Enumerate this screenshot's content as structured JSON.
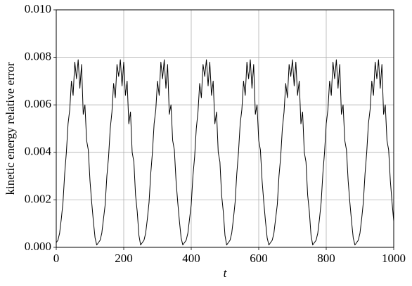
{
  "chart_data": {
    "type": "line",
    "xlabel": "t",
    "ylabel": "kinetic energy relative error",
    "xlim": [
      0,
      1000
    ],
    "ylim": [
      0,
      0.01
    ],
    "xticks": [
      0,
      200,
      400,
      600,
      800,
      1000
    ],
    "yticks": [
      {
        "value": 0,
        "label": "0.000"
      },
      {
        "value": 0.002,
        "label": "0.002"
      },
      {
        "value": 0.004,
        "label": "0.004"
      },
      {
        "value": 0.006,
        "label": "0.006"
      },
      {
        "value": 0.008,
        "label": "0.008"
      },
      {
        "value": 0.01,
        "label": "0.010"
      }
    ],
    "grid": true,
    "series": [
      {
        "color": "#000000",
        "x": [
          0,
          5,
          10,
          15,
          20,
          25,
          30,
          35,
          40,
          45,
          50,
          55,
          60,
          65,
          70,
          75,
          80,
          85,
          90,
          95,
          100,
          105,
          110,
          115,
          120,
          125,
          130,
          135,
          140,
          145,
          150,
          155,
          160,
          165,
          170,
          175,
          180,
          185,
          190,
          195,
          200,
          205,
          210,
          215,
          220,
          225,
          230,
          235,
          240,
          245,
          250,
          255,
          260,
          265,
          270,
          275,
          280,
          285,
          290,
          295,
          300,
          305,
          310,
          315,
          320,
          325,
          330,
          335,
          340,
          345,
          350,
          355,
          360,
          365,
          370,
          375,
          380,
          385,
          390,
          395,
          400,
          405,
          410,
          415,
          420,
          425,
          430,
          435,
          440,
          445,
          450,
          455,
          460,
          465,
          470,
          475,
          480,
          485,
          490,
          495,
          500,
          505,
          510,
          515,
          520,
          525,
          530,
          535,
          540,
          545,
          550,
          555,
          560,
          565,
          570,
          575,
          580,
          585,
          590,
          595,
          600,
          605,
          610,
          615,
          620,
          625,
          630,
          635,
          640,
          645,
          650,
          655,
          660,
          665,
          670,
          675,
          680,
          685,
          690,
          695,
          700,
          705,
          710,
          715,
          720,
          725,
          730,
          735,
          740,
          745,
          750,
          755,
          760,
          765,
          770,
          775,
          780,
          785,
          790,
          795,
          800,
          805,
          810,
          815,
          820,
          825,
          830,
          835,
          840,
          845,
          850,
          855,
          860,
          865,
          870,
          875,
          880,
          885,
          890,
          895,
          900,
          905,
          910,
          915,
          920,
          925,
          930,
          935,
          940,
          945,
          950,
          955,
          960,
          965,
          970,
          975,
          980,
          985,
          990,
          995,
          1000
        ],
        "values": [
          0.0002,
          0.0003,
          0.0006,
          0.0012,
          0.0019,
          0.0031,
          0.004,
          0.0052,
          0.0058,
          0.007,
          0.0064,
          0.0078,
          0.0071,
          0.0079,
          0.0067,
          0.0077,
          0.0056,
          0.006,
          0.0045,
          0.0041,
          0.0028,
          0.0019,
          0.0011,
          0.0004,
          0.0001,
          0.0002,
          0.0003,
          0.0006,
          0.0012,
          0.0018,
          0.003,
          0.0038,
          0.005,
          0.0057,
          0.0069,
          0.0063,
          0.0077,
          0.0072,
          0.0079,
          0.0068,
          0.0078,
          0.0064,
          0.007,
          0.0052,
          0.0057,
          0.004,
          0.0036,
          0.0022,
          0.0015,
          0.0005,
          0.0001,
          0.0002,
          0.0003,
          0.0006,
          0.0012,
          0.0019,
          0.0031,
          0.004,
          0.0052,
          0.0058,
          0.007,
          0.0064,
          0.0078,
          0.0071,
          0.0079,
          0.0067,
          0.0077,
          0.0056,
          0.006,
          0.0045,
          0.0041,
          0.0028,
          0.0019,
          0.0011,
          0.0004,
          0.0001,
          0.0002,
          0.0003,
          0.0006,
          0.0012,
          0.0018,
          0.003,
          0.0038,
          0.005,
          0.0057,
          0.0069,
          0.0063,
          0.0077,
          0.0072,
          0.0079,
          0.0068,
          0.0078,
          0.0064,
          0.007,
          0.0052,
          0.0057,
          0.004,
          0.0036,
          0.0022,
          0.0015,
          0.0005,
          0.0001,
          0.0002,
          0.0003,
          0.0006,
          0.0012,
          0.0019,
          0.0031,
          0.004,
          0.0052,
          0.0058,
          0.007,
          0.0064,
          0.0078,
          0.0071,
          0.0079,
          0.0067,
          0.0077,
          0.0056,
          0.006,
          0.0045,
          0.0041,
          0.0028,
          0.0019,
          0.0011,
          0.0004,
          0.0001,
          0.0002,
          0.0003,
          0.0006,
          0.0012,
          0.0018,
          0.003,
          0.0038,
          0.005,
          0.0057,
          0.0069,
          0.0063,
          0.0077,
          0.0072,
          0.0079,
          0.0068,
          0.0078,
          0.0064,
          0.007,
          0.0052,
          0.0057,
          0.004,
          0.0036,
          0.0022,
          0.0015,
          0.0005,
          0.0001,
          0.0002,
          0.0003,
          0.0006,
          0.0012,
          0.0019,
          0.0031,
          0.004,
          0.0052,
          0.0058,
          0.007,
          0.0064,
          0.0078,
          0.0071,
          0.0079,
          0.0067,
          0.0077,
          0.0056,
          0.006,
          0.0045,
          0.0041,
          0.0028,
          0.0019,
          0.0011,
          0.0004,
          0.0001,
          0.0002,
          0.0003,
          0.0006,
          0.0012,
          0.0019,
          0.0031,
          0.004,
          0.0052,
          0.0058,
          0.007,
          0.0064,
          0.0078,
          0.0071,
          0.0079,
          0.0067,
          0.0077,
          0.0056,
          0.006,
          0.0045,
          0.0041,
          0.0028,
          0.0019,
          0.0011
        ]
      }
    ]
  }
}
